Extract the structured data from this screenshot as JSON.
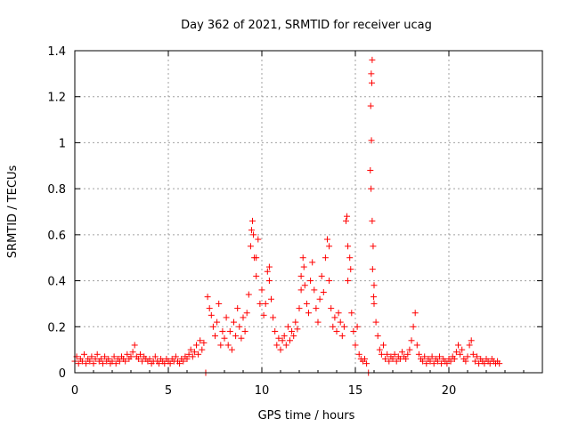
{
  "chart_data": {
    "type": "scatter",
    "title": "Day 362 of 2021, SRMTID for receiver ucag",
    "xlabel": "GPS time / hours",
    "ylabel": "SRMTID / TECUs",
    "xlim": [
      0,
      25
    ],
    "ylim": [
      0,
      1.4
    ],
    "xticks": [
      0,
      5,
      10,
      15,
      20
    ],
    "yticks": [
      0,
      0.2,
      0.4,
      0.6,
      0.8,
      1,
      1.2,
      1.4
    ],
    "xtick_labels": [
      "0",
      "5",
      "10",
      "15",
      "20"
    ],
    "ytick_labels": [
      "0",
      "0.2",
      "0.4",
      "0.6",
      "0.8",
      "1",
      "1.2",
      "1.4"
    ],
    "grid": true,
    "marker": "+",
    "color": "#ff0000",
    "series": [
      {
        "name": "SRMTID",
        "points": [
          [
            0.0,
            0.05
          ],
          [
            0.1,
            0.07
          ],
          [
            0.2,
            0.04
          ],
          [
            0.3,
            0.06
          ],
          [
            0.4,
            0.05
          ],
          [
            0.5,
            0.08
          ],
          [
            0.6,
            0.04
          ],
          [
            0.7,
            0.06
          ],
          [
            0.8,
            0.05
          ],
          [
            0.9,
            0.07
          ],
          [
            1.0,
            0.04
          ],
          [
            1.1,
            0.06
          ],
          [
            1.2,
            0.08
          ],
          [
            1.3,
            0.05
          ],
          [
            1.4,
            0.06
          ],
          [
            1.5,
            0.04
          ],
          [
            1.6,
            0.07
          ],
          [
            1.7,
            0.05
          ],
          [
            1.8,
            0.06
          ],
          [
            1.9,
            0.04
          ],
          [
            2.0,
            0.05
          ],
          [
            2.1,
            0.07
          ],
          [
            2.2,
            0.04
          ],
          [
            2.3,
            0.06
          ],
          [
            2.4,
            0.05
          ],
          [
            2.5,
            0.07
          ],
          [
            2.6,
            0.06
          ],
          [
            2.7,
            0.05
          ],
          [
            2.8,
            0.08
          ],
          [
            2.9,
            0.06
          ],
          [
            3.0,
            0.07
          ],
          [
            3.1,
            0.09
          ],
          [
            3.2,
            0.12
          ],
          [
            3.3,
            0.07
          ],
          [
            3.4,
            0.06
          ],
          [
            3.5,
            0.08
          ],
          [
            3.6,
            0.05
          ],
          [
            3.7,
            0.07
          ],
          [
            3.8,
            0.06
          ],
          [
            3.9,
            0.05
          ],
          [
            4.0,
            0.06
          ],
          [
            4.1,
            0.04
          ],
          [
            4.2,
            0.05
          ],
          [
            4.3,
            0.07
          ],
          [
            4.4,
            0.05
          ],
          [
            4.5,
            0.04
          ],
          [
            4.6,
            0.06
          ],
          [
            4.7,
            0.05
          ],
          [
            4.8,
            0.04
          ],
          [
            4.9,
            0.06
          ],
          [
            5.0,
            0.05
          ],
          [
            5.1,
            0.04
          ],
          [
            5.2,
            0.06
          ],
          [
            5.3,
            0.05
          ],
          [
            5.4,
            0.07
          ],
          [
            5.5,
            0.05
          ],
          [
            5.6,
            0.04
          ],
          [
            5.7,
            0.06
          ],
          [
            5.8,
            0.05
          ],
          [
            5.9,
            0.07
          ],
          [
            6.0,
            0.06
          ],
          [
            6.1,
            0.08
          ],
          [
            6.2,
            0.1
          ],
          [
            6.3,
            0.07
          ],
          [
            6.4,
            0.09
          ],
          [
            6.5,
            0.12
          ],
          [
            6.6,
            0.08
          ],
          [
            6.7,
            0.14
          ],
          [
            6.8,
            0.1
          ],
          [
            6.9,
            0.13
          ],
          [
            7.0,
            0.0
          ],
          [
            7.1,
            0.33
          ],
          [
            7.2,
            0.28
          ],
          [
            7.3,
            0.25
          ],
          [
            7.4,
            0.2
          ],
          [
            7.5,
            0.16
          ],
          [
            7.6,
            0.22
          ],
          [
            7.7,
            0.3
          ],
          [
            7.8,
            0.12
          ],
          [
            7.9,
            0.18
          ],
          [
            8.0,
            0.15
          ],
          [
            8.1,
            0.24
          ],
          [
            8.2,
            0.12
          ],
          [
            8.3,
            0.18
          ],
          [
            8.4,
            0.1
          ],
          [
            8.5,
            0.22
          ],
          [
            8.6,
            0.16
          ],
          [
            8.7,
            0.28
          ],
          [
            8.8,
            0.2
          ],
          [
            8.9,
            0.15
          ],
          [
            9.0,
            0.24
          ],
          [
            9.1,
            0.18
          ],
          [
            9.2,
            0.26
          ],
          [
            9.3,
            0.34
          ],
          [
            9.4,
            0.55
          ],
          [
            9.5,
            0.66
          ],
          [
            9.6,
            0.5
          ],
          [
            9.7,
            0.42
          ],
          [
            9.8,
            0.58
          ],
          [
            9.9,
            0.3
          ],
          [
            10.0,
            0.36
          ],
          [
            10.1,
            0.25
          ],
          [
            10.2,
            0.3
          ],
          [
            10.3,
            0.44
          ],
          [
            10.4,
            0.4
          ],
          [
            10.5,
            0.32
          ],
          [
            10.6,
            0.24
          ],
          [
            10.7,
            0.18
          ],
          [
            10.8,
            0.12
          ],
          [
            10.9,
            0.15
          ],
          [
            11.0,
            0.1
          ],
          [
            11.1,
            0.14
          ],
          [
            11.2,
            0.16
          ],
          [
            11.3,
            0.12
          ],
          [
            11.4,
            0.2
          ],
          [
            11.5,
            0.14
          ],
          [
            11.6,
            0.18
          ],
          [
            11.7,
            0.16
          ],
          [
            11.8,
            0.22
          ],
          [
            11.9,
            0.19
          ],
          [
            12.0,
            0.28
          ],
          [
            12.1,
            0.36
          ],
          [
            12.2,
            0.5
          ],
          [
            12.3,
            0.38
          ],
          [
            12.4,
            0.3
          ],
          [
            12.5,
            0.26
          ],
          [
            12.6,
            0.4
          ],
          [
            12.7,
            0.48
          ],
          [
            12.8,
            0.36
          ],
          [
            12.9,
            0.28
          ],
          [
            13.0,
            0.22
          ],
          [
            13.1,
            0.32
          ],
          [
            13.2,
            0.42
          ],
          [
            13.3,
            0.35
          ],
          [
            13.4,
            0.5
          ],
          [
            13.5,
            0.58
          ],
          [
            13.6,
            0.4
          ],
          [
            13.7,
            0.28
          ],
          [
            13.8,
            0.2
          ],
          [
            13.9,
            0.24
          ],
          [
            14.0,
            0.18
          ],
          [
            14.1,
            0.26
          ],
          [
            14.2,
            0.22
          ],
          [
            14.3,
            0.16
          ],
          [
            14.4,
            0.2
          ],
          [
            14.5,
            0.66
          ],
          [
            14.6,
            0.4
          ],
          [
            14.7,
            0.5
          ],
          [
            14.8,
            0.26
          ],
          [
            14.9,
            0.18
          ],
          [
            15.0,
            0.12
          ],
          [
            15.1,
            0.2
          ],
          [
            15.2,
            0.08
          ],
          [
            15.3,
            0.06
          ],
          [
            15.4,
            0.05
          ],
          [
            15.5,
            0.06
          ],
          [
            15.6,
            0.04
          ],
          [
            15.7,
            0.0
          ],
          [
            15.8,
            0.88
          ],
          [
            15.9,
            1.36
          ],
          [
            16.0,
            0.3
          ],
          [
            16.1,
            0.22
          ],
          [
            16.2,
            0.16
          ],
          [
            16.3,
            0.1
          ],
          [
            16.4,
            0.08
          ],
          [
            16.5,
            0.12
          ],
          [
            16.6,
            0.06
          ],
          [
            16.7,
            0.08
          ],
          [
            16.8,
            0.05
          ],
          [
            16.9,
            0.07
          ],
          [
            17.0,
            0.06
          ],
          [
            17.1,
            0.08
          ],
          [
            17.2,
            0.05
          ],
          [
            17.3,
            0.07
          ],
          [
            17.4,
            0.06
          ],
          [
            17.5,
            0.09
          ],
          [
            17.6,
            0.07
          ],
          [
            17.7,
            0.06
          ],
          [
            17.8,
            0.08
          ],
          [
            17.9,
            0.1
          ],
          [
            18.0,
            0.14
          ],
          [
            18.1,
            0.2
          ],
          [
            18.2,
            0.26
          ],
          [
            18.3,
            0.12
          ],
          [
            18.4,
            0.08
          ],
          [
            18.5,
            0.06
          ],
          [
            18.6,
            0.05
          ],
          [
            18.7,
            0.07
          ],
          [
            18.8,
            0.04
          ],
          [
            18.9,
            0.06
          ],
          [
            19.0,
            0.05
          ],
          [
            19.1,
            0.07
          ],
          [
            19.2,
            0.04
          ],
          [
            19.3,
            0.06
          ],
          [
            19.4,
            0.05
          ],
          [
            19.5,
            0.07
          ],
          [
            19.6,
            0.04
          ],
          [
            19.7,
            0.06
          ],
          [
            19.8,
            0.05
          ],
          [
            19.9,
            0.04
          ],
          [
            20.0,
            0.06
          ],
          [
            20.1,
            0.05
          ],
          [
            20.2,
            0.07
          ],
          [
            20.3,
            0.06
          ],
          [
            20.4,
            0.09
          ],
          [
            20.5,
            0.12
          ],
          [
            20.6,
            0.08
          ],
          [
            20.7,
            0.1
          ],
          [
            20.8,
            0.06
          ],
          [
            20.9,
            0.05
          ],
          [
            21.0,
            0.07
          ],
          [
            21.1,
            0.12
          ],
          [
            21.2,
            0.14
          ],
          [
            21.3,
            0.08
          ],
          [
            21.4,
            0.05
          ],
          [
            21.5,
            0.07
          ],
          [
            21.6,
            0.04
          ],
          [
            21.7,
            0.06
          ],
          [
            21.8,
            0.05
          ],
          [
            21.9,
            0.04
          ],
          [
            22.0,
            0.06
          ],
          [
            22.1,
            0.05
          ],
          [
            22.2,
            0.04
          ],
          [
            22.3,
            0.06
          ],
          [
            22.4,
            0.05
          ],
          [
            22.5,
            0.04
          ],
          [
            22.6,
            0.05
          ],
          [
            22.7,
            0.04
          ],
          [
            9.45,
            0.62
          ],
          [
            9.55,
            0.6
          ],
          [
            9.7,
            0.5
          ],
          [
            13.6,
            0.55
          ],
          [
            12.25,
            0.46
          ],
          [
            14.55,
            0.68
          ],
          [
            10.4,
            0.46
          ],
          [
            15.85,
            1.3
          ],
          [
            15.88,
            1.26
          ],
          [
            15.82,
            1.16
          ],
          [
            15.86,
            1.01
          ],
          [
            15.84,
            0.8
          ],
          [
            15.9,
            0.66
          ],
          [
            15.95,
            0.55
          ],
          [
            15.92,
            0.45
          ],
          [
            16.0,
            0.38
          ],
          [
            15.98,
            0.33
          ],
          [
            14.6,
            0.55
          ],
          [
            14.75,
            0.45
          ],
          [
            12.1,
            0.42
          ]
        ]
      }
    ]
  }
}
